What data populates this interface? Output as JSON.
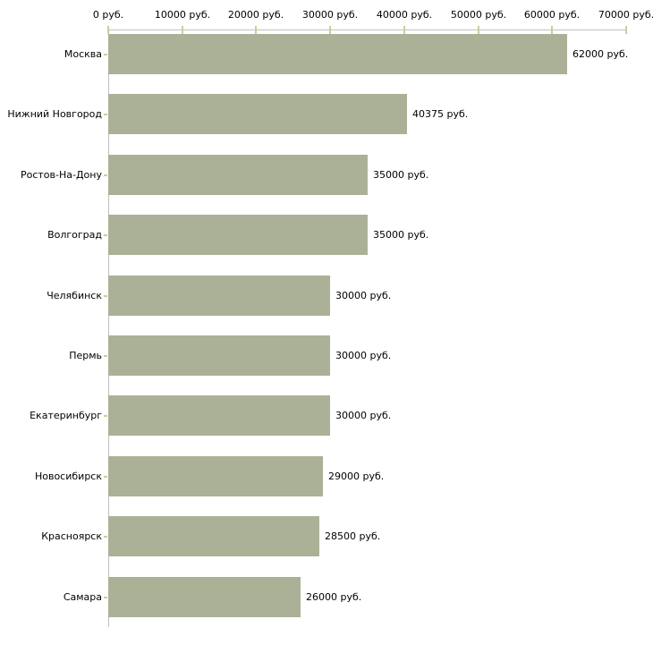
{
  "chart_data": {
    "type": "bar",
    "orientation": "horizontal",
    "unit": "руб.",
    "categories": [
      "Москва",
      "Нижний Новгород",
      "Ростов-На-Дону",
      "Волгоград",
      "Челябинск",
      "Пермь",
      "Екатеринбург",
      "Новосибирск",
      "Красноярск",
      "Самара"
    ],
    "values": [
      62000,
      40375,
      35000,
      35000,
      30000,
      30000,
      30000,
      29000,
      28500,
      26000
    ],
    "value_labels": [
      "62000 руб.",
      "40375 руб.",
      "35000 руб.",
      "35000 руб.",
      "30000 руб.",
      "30000 руб.",
      "30000 руб.",
      "29000 руб.",
      "28500 руб.",
      "26000 руб."
    ],
    "x_axis": {
      "position": "top",
      "min": 0,
      "max": 70000,
      "tick_interval": 10000,
      "ticks": [
        0,
        10000,
        20000,
        30000,
        40000,
        50000,
        60000,
        70000
      ],
      "tick_labels": [
        "0 руб.",
        "10000 руб.",
        "20000 руб.",
        "30000 руб.",
        "40000 руб.",
        "50000 руб.",
        "60000 руб.",
        "70000 руб."
      ]
    },
    "grid": false,
    "legend": false,
    "colors": {
      "bar": "#abb197",
      "axis_line": "#c0c0c0",
      "tick": "#cccc99",
      "text": "#000000",
      "background": "#ffffff"
    }
  }
}
